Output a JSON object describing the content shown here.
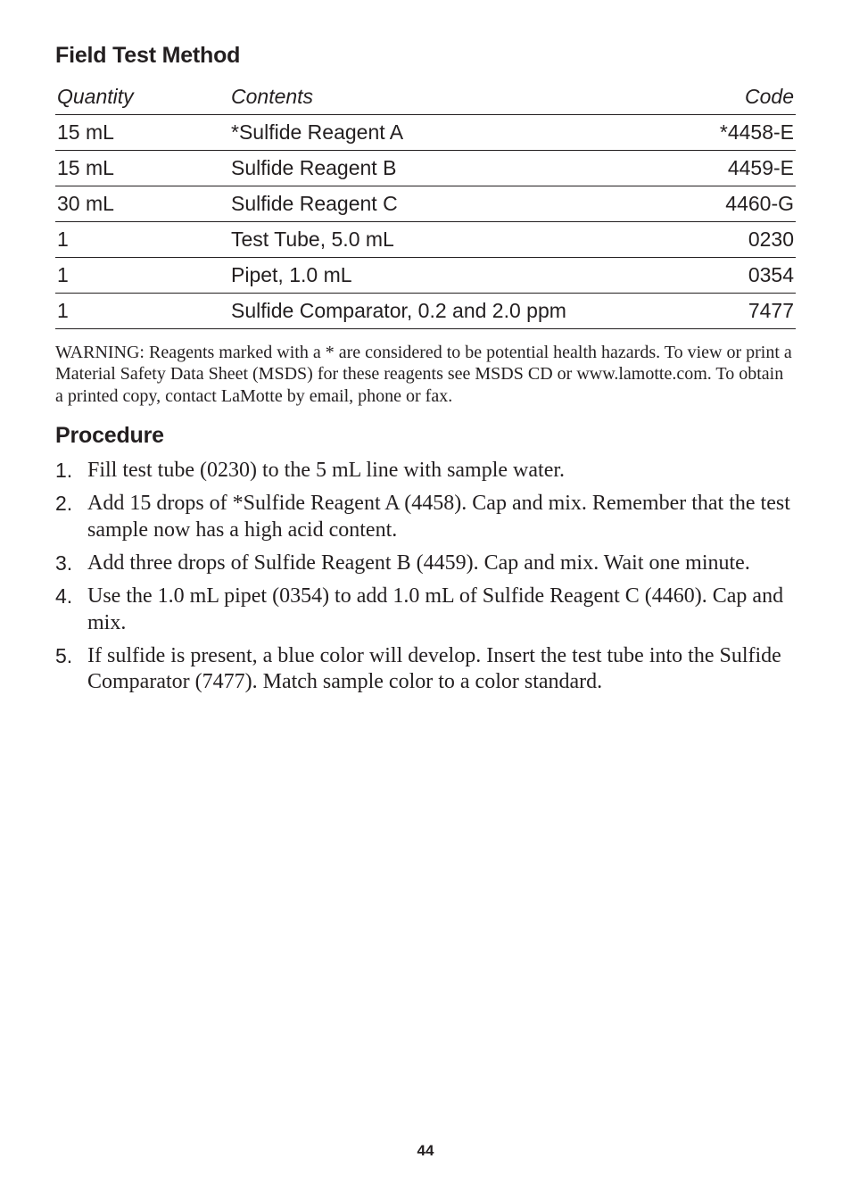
{
  "section_title": "Field Test Method",
  "table": {
    "headers": {
      "quantity": "Quantity",
      "contents": "Contents",
      "code": "Code"
    },
    "rows": [
      {
        "quantity": "15 mL",
        "contents": "*Sulfide Reagent A",
        "code": "*4458-E"
      },
      {
        "quantity": "15 mL",
        "contents": "Sulfide Reagent B",
        "code": "4459-E"
      },
      {
        "quantity": "30 mL",
        "contents": "Sulfide Reagent C",
        "code": "4460-G"
      },
      {
        "quantity": "1",
        "contents": "Test Tube, 5.0 mL",
        "code": "0230"
      },
      {
        "quantity": "1",
        "contents": "Pipet, 1.0 mL",
        "code": "0354"
      },
      {
        "quantity": "1",
        "contents": "Sulfide Comparator, 0.2 and 2.0  ppm",
        "code": "7477"
      }
    ]
  },
  "warning": "WARNING: Reagents marked with a * are considered to be potential health hazards. To view or print a Material Safety Data Sheet (MSDS) for these reagents see MSDS CD or www.lamotte.com. To obtain a printed copy, contact LaMotte by email, phone or fax.",
  "procedure_title": "Procedure",
  "procedure_steps": [
    "Fill test tube (0230) to the 5 mL line with sample water.",
    "Add 15 drops of *Sulfide Reagent A (4458). Cap and mix. Remember that the test sample now has a high acid content.",
    "Add three drops of Sulfide Reagent B (4459). Cap and mix. Wait one minute.",
    "Use the 1.0 mL pipet (0354) to add 1.0 mL of Sulfide Reagent C (4460). Cap and mix.",
    "If sulfide is present, a blue color will develop. Insert the test tube into the Sulfide Comparator (7477). Match sample color to a color standard."
  ],
  "page_number": "44"
}
